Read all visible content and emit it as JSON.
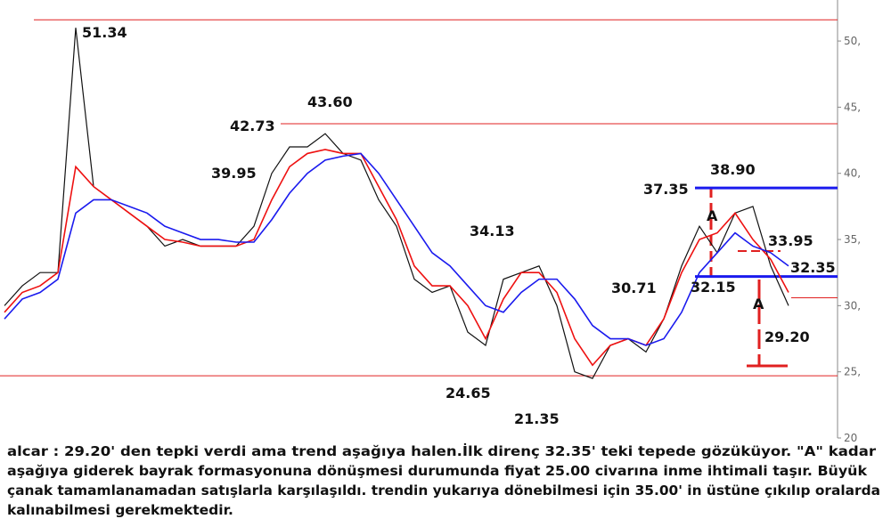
{
  "chart_data": {
    "type": "line",
    "series": [
      {
        "color": "#111111",
        "values": [
          30,
          31.5,
          32.5,
          32.5,
          51,
          39,
          38,
          37,
          36,
          34.5,
          35,
          34.5,
          34.5,
          34.5,
          36,
          40,
          42,
          42,
          43,
          41.5,
          41,
          38,
          36,
          32,
          31,
          31.5,
          28,
          27,
          32,
          32.5,
          33,
          30,
          25,
          24.5,
          27,
          27.5,
          26.5,
          29,
          33,
          36,
          34,
          37,
          37.5,
          33,
          30
        ]
      },
      {
        "color": "#ee1111",
        "values": [
          29.5,
          31,
          31.5,
          32.5,
          40.5,
          39,
          38,
          37,
          36,
          35,
          34.8,
          34.5,
          34.5,
          34.5,
          35,
          38,
          40.5,
          41.5,
          41.8,
          41.5,
          41.5,
          39,
          36.5,
          33,
          31.5,
          31.5,
          30,
          27.5,
          30.5,
          32.5,
          32.5,
          31,
          27.5,
          25.5,
          27,
          27.5,
          27,
          29,
          32.5,
          35,
          35.5,
          37,
          35,
          33.5,
          31
        ]
      },
      {
        "color": "#1a1aee",
        "values": [
          29,
          30.5,
          31,
          32,
          37,
          38,
          38,
          37.5,
          37,
          36,
          35.5,
          35,
          35,
          34.8,
          34.8,
          36.5,
          38.5,
          40,
          41,
          41.3,
          41.5,
          40,
          38,
          36,
          34,
          33,
          31.5,
          30,
          29.5,
          31,
          32,
          32,
          30.5,
          28.5,
          27.5,
          27.5,
          27,
          27.5,
          29.5,
          32.5,
          34,
          35.5,
          34.5,
          34,
          33
        ]
      }
    ],
    "ylim": [
      20,
      53.1
    ],
    "yticks": [
      20,
      {
        "value": 25,
        "label": "25,"
      },
      {
        "value": 30,
        "label": "30,"
      },
      {
        "value": 35,
        "label": "35,"
      },
      {
        "value": 40,
        "label": "40,"
      },
      {
        "value": 45,
        "label": "45,"
      },
      {
        "value": 50,
        "label": "50,"
      }
    ],
    "levels": [
      {
        "value": 51.6,
        "color": "#e02020"
      },
      {
        "value": 43.75,
        "color": "#e02020"
      },
      {
        "value": 24.7,
        "color": "#e02020"
      },
      {
        "value": 30.6,
        "color": "#e02020"
      },
      {
        "value": 38.9,
        "color": "#1a1aee"
      },
      {
        "value": 32.2,
        "color": "#1a1aee"
      }
    ],
    "annotations": [
      "51.34",
      "43.60",
      "42.73",
      "39.95",
      "34.13",
      "24.65",
      "21.35",
      "30.71",
      "37.35",
      "38.90",
      "33.95",
      "32.35",
      "32.15",
      "29.20",
      "A",
      "A"
    ]
  },
  "caption": {
    "lines": [
      "alcar : 29.20' den tepki verdi ama trend aşağıya halen.İlk direnç 32.35' teki tepede gözüküyor. \"A\" kadar",
      "aşağıya giderek bayrak formasyonuna dönüşmesi durumunda fiyat 25.00 civarına inme ihtimali taşır. Büyük",
      "çanak tamamlanamadan satışlarla karşılaşıldı. trendin yukarıya dönebilmesi için 35.00' in üstüne çıkılıp oralarda",
      "kalınabilmesi gerekmektedir."
    ]
  }
}
